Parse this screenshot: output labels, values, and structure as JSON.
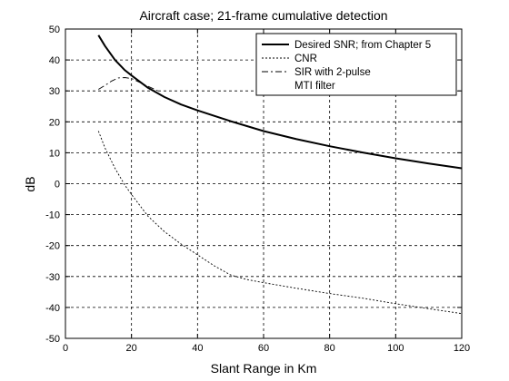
{
  "chart_data": {
    "type": "line",
    "title": "Aircraft case; 21-frame cumulative detection",
    "xlabel": "Slant Range in Km",
    "ylabel": "dB",
    "xlim": [
      0,
      120
    ],
    "ylim": [
      -50,
      50
    ],
    "xticks": [
      0,
      20,
      40,
      60,
      80,
      100,
      120
    ],
    "yticks": [
      -50,
      -40,
      -30,
      -20,
      -10,
      0,
      10,
      20,
      30,
      40,
      50
    ],
    "grid": true,
    "legend_position": "top-right",
    "series": [
      {
        "name": "Desired SNR; from Chapter 5",
        "style": "solid",
        "x": [
          10,
          12,
          15,
          18,
          20,
          25,
          30,
          35,
          40,
          50,
          60,
          70,
          80,
          90,
          100,
          110,
          120
        ],
        "y": [
          48,
          44.5,
          40,
          36.7,
          35,
          31,
          28,
          25.6,
          23.7,
          20.2,
          17,
          14.4,
          12.1,
          10.1,
          8.2,
          6.5,
          5
        ]
      },
      {
        "name": "CNR",
        "style": "dotted",
        "x": [
          10,
          12,
          15,
          18,
          20,
          25,
          30,
          35,
          40,
          45,
          50,
          55,
          60,
          70,
          80,
          90,
          100,
          110,
          120
        ],
        "y": [
          17,
          11.5,
          5,
          -0.5,
          -3.5,
          -10.5,
          -15.5,
          -19.5,
          -23,
          -26.5,
          -29.5,
          -31,
          -32,
          -33.8,
          -35.5,
          -37,
          -38.8,
          -40.4,
          -42
        ]
      },
      {
        "name": "SIR with 2-pulse",
        "name_line2": "MTI filter",
        "style": "dashdot",
        "x": [
          10,
          12,
          14,
          16,
          18,
          20,
          22,
          24,
          26,
          28
        ],
        "y": [
          30.5,
          31.8,
          33.2,
          34.2,
          34.3,
          34,
          33,
          32,
          31,
          30
        ]
      }
    ]
  }
}
